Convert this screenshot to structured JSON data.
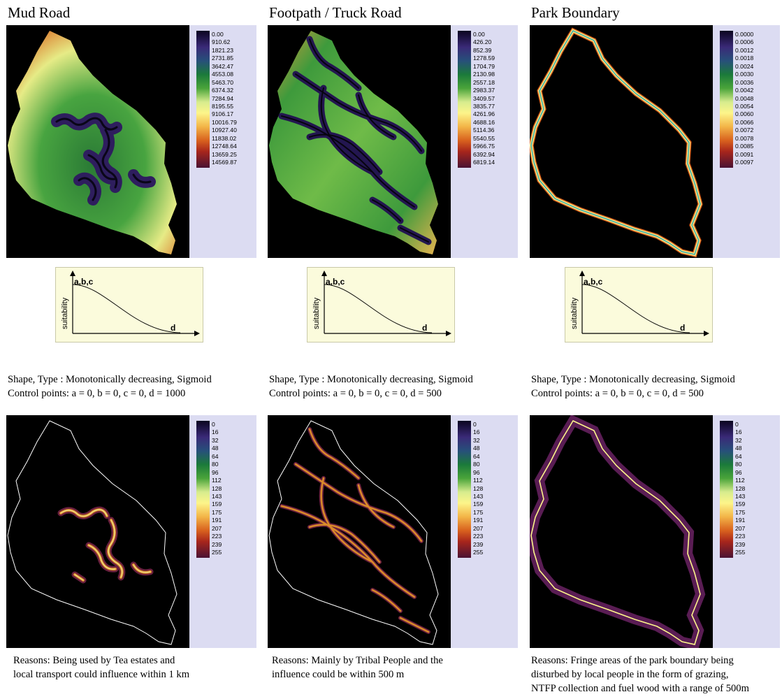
{
  "columns": [
    {
      "title": "Mud Road",
      "distance_legend": [
        "0.00",
        "910.62",
        "1821.23",
        "2731.85",
        "3642.47",
        "4553.08",
        "5463.70",
        "6374.32",
        "7284.94",
        "8195.55",
        "9106.17",
        "10016.79",
        "10927.40",
        "11838.02",
        "12748.64",
        "13659.25",
        "14569.87"
      ],
      "fuzzy_axis": {
        "top_label": "a,b,c",
        "y_label": "suitability",
        "x_label": "d"
      },
      "shape_text": "Shape, Type : Monotonically decreasing, Sigmoid",
      "control_text": "Control points: a = 0, b = 0, c = 0,  d = 1000",
      "standardized_legend": [
        "0",
        "16",
        "32",
        "48",
        "64",
        "80",
        "96",
        "112",
        "128",
        "143",
        "159",
        "175",
        "191",
        "207",
        "223",
        "239",
        "255"
      ],
      "reason_lines": [
        "Reasons: Being used by Tea estates and",
        "local transport could influence within 1 km"
      ]
    },
    {
      "title": "Footpath / Truck Road",
      "distance_legend": [
        "0.00",
        "426.20",
        "852.39",
        "1278.59",
        "1704.79",
        "2130.98",
        "2557.18",
        "2983.37",
        "3409.57",
        "3835.77",
        "4261.96",
        "4688.16",
        "5114.36",
        "5540.55",
        "5966.75",
        "6392.94",
        "6819.14"
      ],
      "fuzzy_axis": {
        "top_label": "a,b,c",
        "y_label": "suitability",
        "x_label": "d"
      },
      "shape_text": "Shape, Type : Monotonically decreasing, Sigmoid",
      "control_text": "Control points: a = 0, b = 0, c = 0,  d = 500",
      "standardized_legend": [
        "0",
        "16",
        "32",
        "48",
        "64",
        "80",
        "96",
        "112",
        "128",
        "143",
        "159",
        "175",
        "191",
        "207",
        "223",
        "239",
        "255"
      ],
      "reason_lines": [
        "Reasons: Mainly by Tribal People and the",
        "influence could be within 500 m"
      ]
    },
    {
      "title": "Park Boundary",
      "distance_legend": [
        "0.0000",
        "0.0006",
        "0.0012",
        "0.0018",
        "0.0024",
        "0.0030",
        "0.0036",
        "0.0042",
        "0.0048",
        "0.0054",
        "0.0060",
        "0.0066",
        "0.0072",
        "0.0078",
        "0.0085",
        "0.0091",
        "0.0097"
      ],
      "fuzzy_axis": {
        "top_label": "a,b,c",
        "y_label": "suitability",
        "x_label": "d"
      },
      "shape_text": "Shape, Type : Monotonically decreasing, Sigmoid",
      "control_text": "Control points: a = 0, b = 0, c = 0,  d = 500",
      "standardized_legend": [
        "0",
        "16",
        "32",
        "48",
        "64",
        "80",
        "96",
        "112",
        "128",
        "143",
        "159",
        "175",
        "191",
        "207",
        "223",
        "239",
        "255"
      ],
      "reason_lines": [
        "Reasons: Fringe areas of the park boundary being",
        "disturbed by local people in the form of grazing,",
        "NTFP collection and fuel wood with a range of 500m"
      ]
    }
  ],
  "colors": {
    "panel_bg": "#dcdcf2",
    "map_bg": "#000000",
    "curve_bg": "#fbfbdc",
    "outline": "#ffffff"
  }
}
